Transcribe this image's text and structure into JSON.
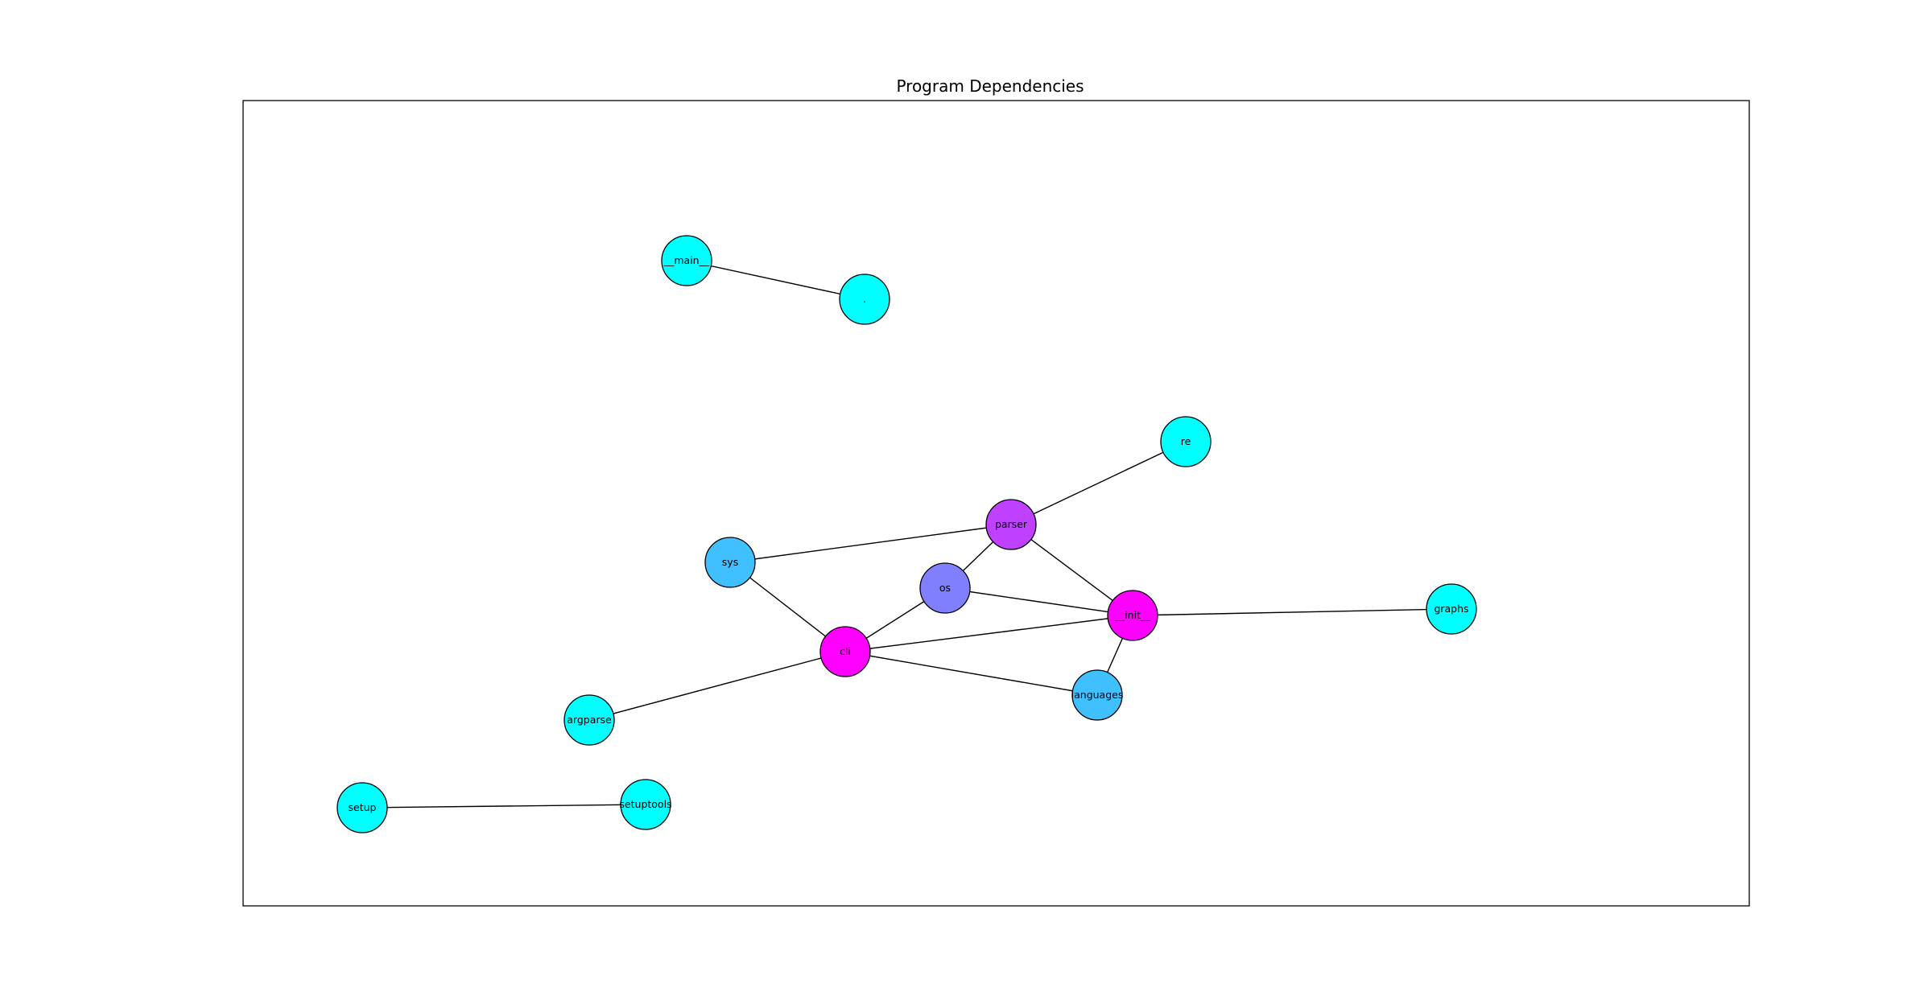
{
  "title": "Program Dependencies",
  "nodes": [
    {
      "id": "__main__",
      "label": "__main__",
      "color": "#00ffff"
    },
    {
      "id": "dot",
      "label": ".",
      "color": "#00ffff"
    },
    {
      "id": "re",
      "label": "re",
      "color": "#00ffff"
    },
    {
      "id": "parser",
      "label": "parser",
      "color": "#c040ff"
    },
    {
      "id": "sys",
      "label": "sys",
      "color": "#40c0ff"
    },
    {
      "id": "os",
      "label": "os",
      "color": "#8080ff"
    },
    {
      "id": "__init__",
      "label": "__init__",
      "color": "#ff00ff"
    },
    {
      "id": "graphs",
      "label": "graphs",
      "color": "#00ffff"
    },
    {
      "id": "cli",
      "label": "cli",
      "color": "#ff00ff"
    },
    {
      "id": "languages",
      "label": "languages",
      "color": "#40c0ff"
    },
    {
      "id": "argparse",
      "label": "argparse",
      "color": "#00ffff"
    },
    {
      "id": "setup",
      "label": "setup",
      "color": "#00ffff"
    },
    {
      "id": "setuptools",
      "label": "setuptools",
      "color": "#00ffff"
    }
  ],
  "edges": [
    [
      "__main__",
      "dot"
    ],
    [
      "re",
      "parser"
    ],
    [
      "parser",
      "sys"
    ],
    [
      "parser",
      "os"
    ],
    [
      "parser",
      "__init__"
    ],
    [
      "sys",
      "cli"
    ],
    [
      "os",
      "cli"
    ],
    [
      "os",
      "__init__"
    ],
    [
      "cli",
      "__init__"
    ],
    [
      "cli",
      "languages"
    ],
    [
      "cli",
      "argparse"
    ],
    [
      "__init__",
      "graphs"
    ],
    [
      "__init__",
      "languages"
    ],
    [
      "setup",
      "setuptools"
    ]
  ]
}
